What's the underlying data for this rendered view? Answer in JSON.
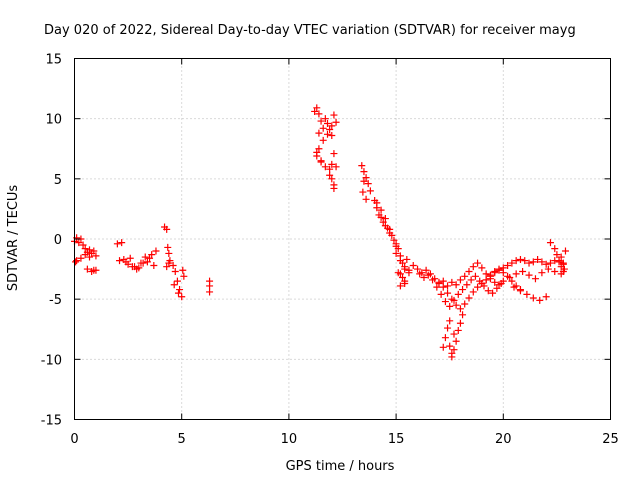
{
  "chart_data": {
    "type": "scatter",
    "title": "Day 020 of 2022, Sidereal Day-to-day VTEC variation (SDTVAR) for receiver mayg",
    "xlabel": "GPS time / hours",
    "ylabel": "SDTVAR / TECUs",
    "xlim": [
      0,
      25
    ],
    "ylim": [
      -15,
      15
    ],
    "xticks": [
      0,
      5,
      10,
      15,
      20,
      25
    ],
    "yticks": [
      -15,
      -10,
      -5,
      0,
      5,
      10,
      15
    ],
    "xtick_labels": [
      "0",
      "5",
      "10",
      "15",
      "20",
      "25"
    ],
    "ytick_labels": [
      "-15",
      "-10",
      "-5",
      "0",
      "5",
      "10",
      "15"
    ],
    "grid": true,
    "marker": "+",
    "marker_color": "#ff0000",
    "series": [
      {
        "name": "SDTVAR",
        "x": [
          0.0,
          0.1,
          0.2,
          0.3,
          0.4,
          0.5,
          0.6,
          0.7,
          0.8,
          0.9,
          1.0,
          0.1,
          0.3,
          0.5,
          0.7,
          0.9,
          0.05,
          0.6,
          0.8,
          1.0,
          2.0,
          2.2,
          2.4,
          2.6,
          2.8,
          3.0,
          3.2,
          3.4,
          3.6,
          3.8,
          2.1,
          2.5,
          2.9,
          3.3,
          3.7,
          2.3,
          2.7,
          3.1,
          3.5,
          4.2,
          4.3,
          4.35,
          4.4,
          4.45,
          4.3,
          4.4,
          4.6,
          4.7,
          4.8,
          4.9,
          5.0,
          5.1,
          4.65,
          4.85,
          5.05,
          6.3,
          6.3,
          6.3,
          11.2,
          11.3,
          11.4,
          11.5,
          11.6,
          11.7,
          11.8,
          11.9,
          12.0,
          12.1,
          12.2,
          11.4,
          11.6,
          11.8,
          12.0,
          11.3,
          11.5,
          11.7,
          11.9,
          12.1,
          11.3,
          11.4,
          11.5,
          12.0,
          12.1,
          12.2,
          11.9,
          12.0,
          12.1,
          13.4,
          13.5,
          13.6,
          13.7,
          13.8,
          13.5,
          13.6,
          13.45,
          14.0,
          14.1,
          14.2,
          14.3,
          14.4,
          14.5,
          14.6,
          14.7,
          14.8,
          14.9,
          14.1,
          14.3,
          14.5,
          14.7,
          15.0,
          15.1,
          15.2,
          15.3,
          15.4,
          15.5,
          15.1,
          15.3,
          15.2,
          15.4,
          15.6,
          15.8,
          15.0,
          15.2,
          15.4,
          15.0,
          15.2,
          15.4,
          15.6,
          16.0,
          16.2,
          16.4,
          16.6,
          16.8,
          17.0,
          17.2,
          17.4,
          17.6,
          17.8,
          18.0,
          18.2,
          18.4,
          18.6,
          18.8,
          19.0,
          19.2,
          19.4,
          19.6,
          19.8,
          16.1,
          16.3,
          16.5,
          16.7,
          16.9,
          17.1,
          17.3,
          17.5,
          17.7,
          17.9,
          18.1,
          18.3,
          18.5,
          18.7,
          18.9,
          19.1,
          19.3,
          19.5,
          19.7,
          19.9,
          17.0,
          17.2,
          17.4,
          17.6,
          17.8,
          18.0,
          18.2,
          18.4,
          18.6,
          18.8,
          19.0,
          19.2,
          19.4,
          19.6,
          19.8,
          20.0,
          20.2,
          20.4,
          20.6,
          20.8,
          17.2,
          17.3,
          17.4,
          17.5,
          17.6,
          17.7,
          17.8,
          17.9,
          18.0,
          18.1,
          17.5,
          17.6,
          17.7,
          19.0,
          19.2,
          19.4,
          19.6,
          19.8,
          20.0,
          20.2,
          20.4,
          20.6,
          20.8,
          21.0,
          21.2,
          21.4,
          21.6,
          21.8,
          22.0,
          22.2,
          22.4,
          22.6,
          22.8,
          20.0,
          20.3,
          20.6,
          20.9,
          21.2,
          21.5,
          21.8,
          22.1,
          22.4,
          22.7,
          20.5,
          20.8,
          21.1,
          21.4,
          21.7,
          22.0,
          22.2,
          22.4,
          22.5,
          22.6,
          22.7,
          22.8,
          22.85,
          22.9,
          22.7,
          22.8
        ],
        "y": [
          -0.2,
          0.1,
          -0.3,
          0.0,
          -0.5,
          -0.8,
          -1.1,
          -0.9,
          -1.2,
          -1.0,
          -1.4,
          -1.8,
          -1.6,
          -1.3,
          -1.5,
          -2.6,
          -1.9,
          -2.5,
          -2.7,
          -2.6,
          -0.4,
          -0.3,
          -1.9,
          -1.6,
          -2.3,
          -2.4,
          -2.0,
          -1.9,
          -1.3,
          -1.0,
          -1.8,
          -2.1,
          -2.5,
          -1.5,
          -2.2,
          -1.7,
          -2.3,
          -2.0,
          -1.6,
          1.0,
          0.8,
          -0.7,
          -1.2,
          -1.8,
          -2.3,
          -2.0,
          -2.2,
          -2.7,
          -3.5,
          -4.2,
          -4.8,
          -3.1,
          -3.8,
          -4.5,
          -2.6,
          -3.5,
          -3.9,
          -4.4,
          10.6,
          10.9,
          10.4,
          9.8,
          9.2,
          10.0,
          9.6,
          9.1,
          8.6,
          10.3,
          9.7,
          8.8,
          8.2,
          8.7,
          9.4,
          7.2,
          6.5,
          6.0,
          5.3,
          4.5,
          6.9,
          7.5,
          6.4,
          6.2,
          7.1,
          6.0,
          5.8,
          5.0,
          4.2,
          6.1,
          5.6,
          5.1,
          4.6,
          4.0,
          4.8,
          3.3,
          3.9,
          3.2,
          2.6,
          2.0,
          1.8,
          1.4,
          1.1,
          0.9,
          0.5,
          0.3,
          -0.1,
          3.0,
          2.4,
          1.7,
          0.8,
          -0.4,
          -0.8,
          -1.4,
          -2.0,
          -2.5,
          -1.7,
          -2.8,
          -3.2,
          -3.9,
          -3.5,
          -2.6,
          -2.2,
          -1.2,
          -2.9,
          -3.7,
          -0.6,
          -1.8,
          -2.3,
          -2.8,
          -2.5,
          -2.8,
          -2.6,
          -2.9,
          -3.3,
          -3.7,
          -3.5,
          -3.9,
          -3.6,
          -3.8,
          -3.4,
          -3.1,
          -2.7,
          -2.3,
          -2.0,
          -2.4,
          -2.9,
          -3.3,
          -3.6,
          -3.8,
          -2.9,
          -3.2,
          -3.0,
          -3.4,
          -4.0,
          -4.6,
          -5.2,
          -5.6,
          -5.1,
          -4.6,
          -4.2,
          -3.8,
          -3.4,
          -3.1,
          -3.5,
          -3.9,
          -4.3,
          -4.5,
          -4.1,
          -3.7,
          -3.6,
          -4.0,
          -4.5,
          -5.0,
          -5.5,
          -5.8,
          -5.4,
          -4.9,
          -4.4,
          -4.0,
          -3.7,
          -3.4,
          -3.0,
          -2.7,
          -2.5,
          -2.8,
          -3.1,
          -3.5,
          -3.9,
          -4.2,
          -9.0,
          -8.2,
          -7.4,
          -6.8,
          -9.8,
          -9.2,
          -8.5,
          -7.6,
          -7.0,
          -6.3,
          -8.9,
          -9.5,
          -7.9,
          -3.7,
          -3.4,
          -3.1,
          -2.8,
          -2.6,
          -2.4,
          -2.2,
          -2.0,
          -1.8,
          -1.7,
          -1.8,
          -2.0,
          -1.9,
          -1.7,
          -1.9,
          -2.1,
          -2.0,
          -1.8,
          -1.9,
          -2.1,
          -3.5,
          -3.2,
          -2.9,
          -2.7,
          -3.0,
          -3.3,
          -2.8,
          -2.5,
          -2.7,
          -2.9,
          -4.0,
          -4.3,
          -4.6,
          -4.9,
          -5.1,
          -4.8,
          -0.3,
          -0.8,
          -1.3,
          -1.8,
          -2.3,
          -2.7,
          -2.5,
          -1.0,
          -1.5,
          -2.0
        ]
      }
    ]
  }
}
